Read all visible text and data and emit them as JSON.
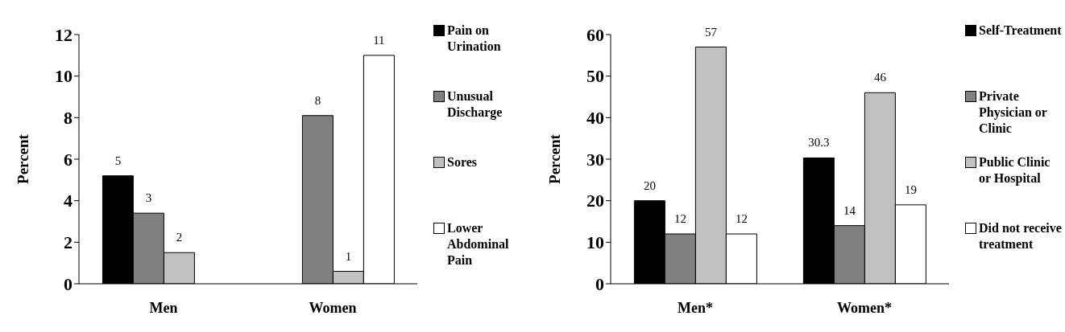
{
  "chart_data": [
    {
      "type": "bar",
      "categories": [
        "Men",
        "Women"
      ],
      "ylabel": "Percent",
      "ylim": [
        0,
        12
      ],
      "yticks": [
        0,
        2,
        4,
        6,
        8,
        10,
        12
      ],
      "grid": false,
      "legend": "right",
      "series": [
        {
          "name": "Pain on Urination",
          "color": "#000000",
          "values": [
            5.2,
            null
          ],
          "value_labels": [
            "5",
            null
          ]
        },
        {
          "name": "Unusual Discharge",
          "color": "#808080",
          "values": [
            3.4,
            8.1
          ],
          "value_labels": [
            "3",
            "8"
          ]
        },
        {
          "name": "Sores",
          "color": "#c0c0c0",
          "values": [
            1.5,
            0.6
          ],
          "value_labels": [
            "2",
            "1"
          ]
        },
        {
          "name": "Lower Abdominal Pain",
          "color": "#ffffff",
          "values": [
            null,
            11
          ],
          "value_labels": [
            null,
            "11"
          ]
        }
      ]
    },
    {
      "type": "bar",
      "categories": [
        "Men*",
        "Women*"
      ],
      "ylabel": "Percent",
      "ylim": [
        0,
        60
      ],
      "yticks": [
        0,
        10,
        20,
        30,
        40,
        50,
        60
      ],
      "grid": false,
      "legend": "right",
      "data_labels": true,
      "series": [
        {
          "name": "Self-Treatment",
          "color": "#000000",
          "values": [
            20,
            30.3
          ]
        },
        {
          "name": "Private Physician or Clinic",
          "color": "#808080",
          "values": [
            12,
            14
          ]
        },
        {
          "name": "Public Clinic or Hospital",
          "color": "#c0c0c0",
          "values": [
            57,
            46
          ]
        },
        {
          "name": "Did not receive treatment",
          "color": "#ffffff",
          "values": [
            12,
            19
          ]
        }
      ]
    }
  ]
}
